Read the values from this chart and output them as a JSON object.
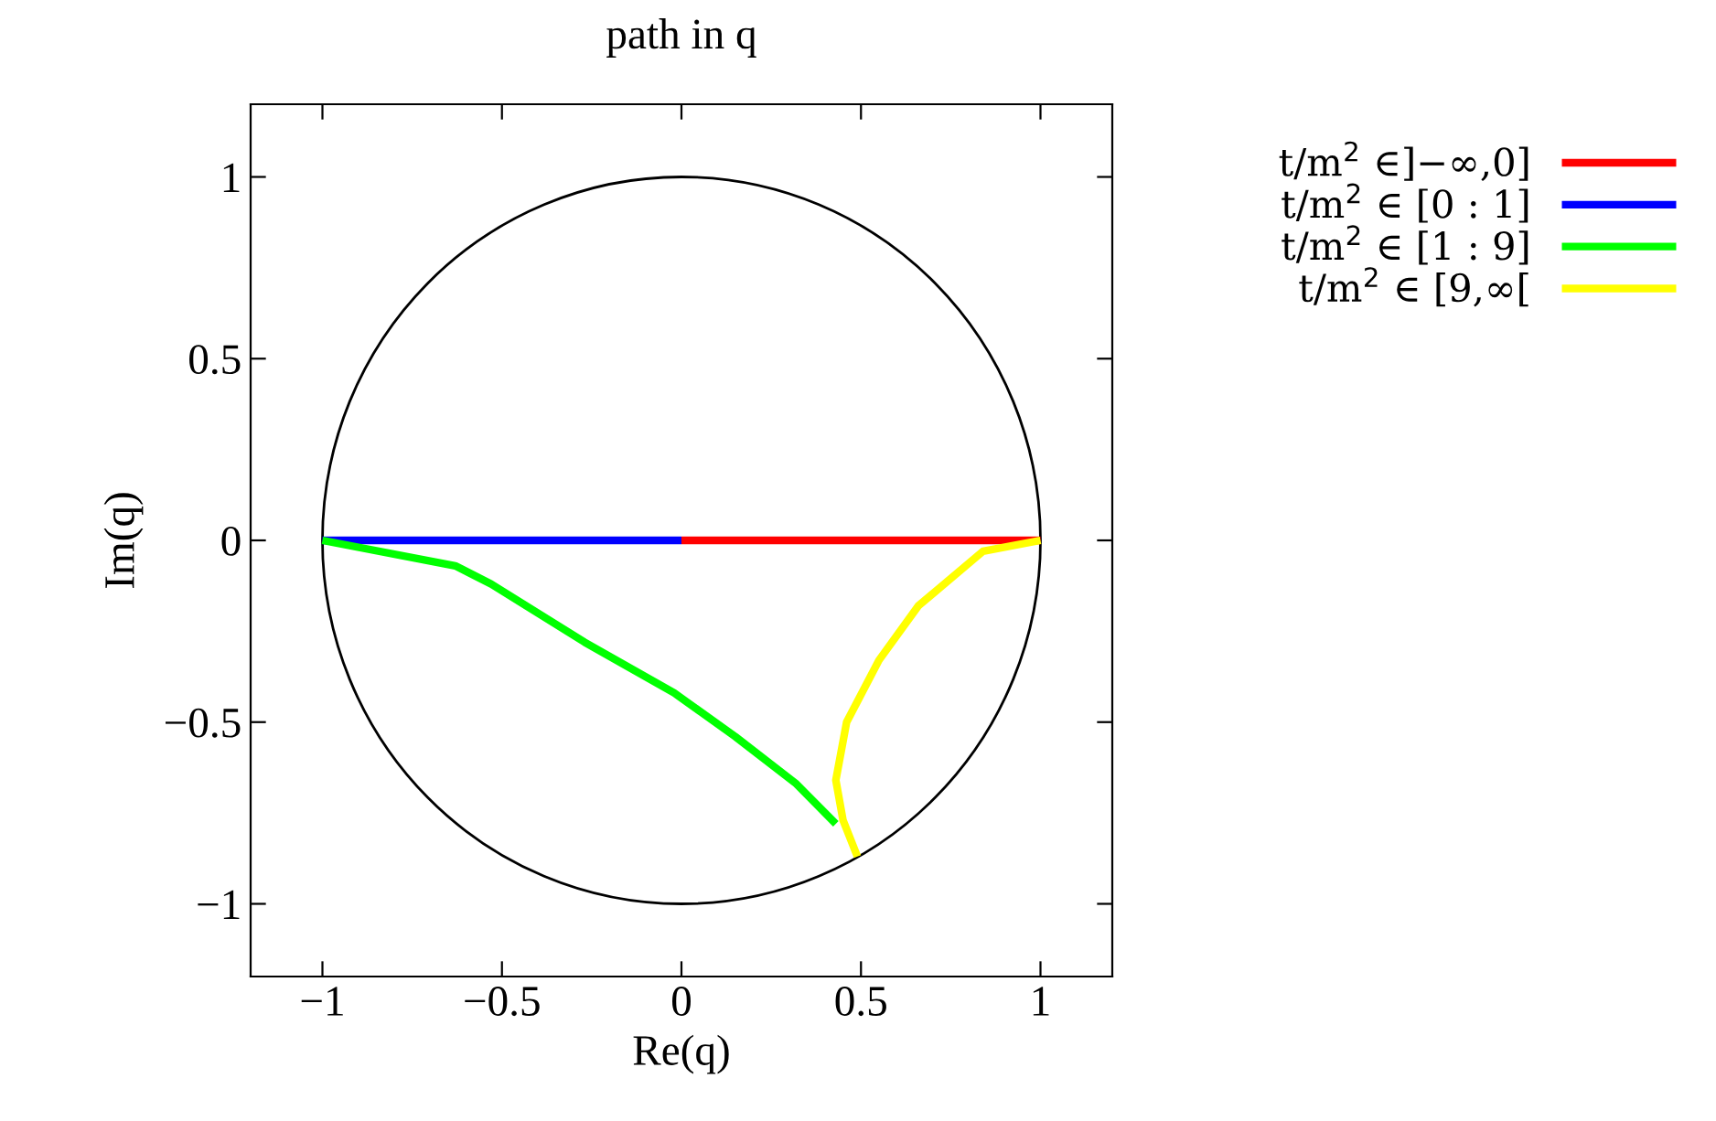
{
  "chart_data": {
    "type": "line",
    "title": "path in q",
    "xlabel": "Re(q)",
    "ylabel": "Im(q)",
    "xlim": [
      -1.2,
      1.2
    ],
    "ylim": [
      -1.2,
      1.2
    ],
    "xticks": [
      {
        "value": -1,
        "label": "−1"
      },
      {
        "value": -0.5,
        "label": "−0.5"
      },
      0,
      0.5,
      1
    ],
    "yticks": [
      {
        "value": -1,
        "label": "−1"
      },
      {
        "value": -0.5,
        "label": "−0.5"
      },
      0,
      0.5,
      1
    ],
    "grid": false,
    "legend": "top right",
    "marker": "none",
    "line_style": "solid",
    "series": [
      {
        "name": "t/m$^{2}$ ∈]−∞,0]",
        "color": "#ff0000",
        "x": [
          0,
          1
        ],
        "values": [
          0,
          0
        ]
      },
      {
        "name": "t/m$^{2}$ ∈ [0 : 1]",
        "color": "#0000ff",
        "x": [
          -1,
          0
        ],
        "values": [
          0,
          0
        ]
      },
      {
        "name": "t/m$^{2}$ ∈ [1 : 9]",
        "color": "#00ff00",
        "x": [
          -1,
          -0.63,
          -0.53,
          -0.27,
          -0.02,
          0.15,
          0.32,
          0.43
        ],
        "values": [
          0,
          -0.07,
          -0.12,
          -0.28,
          -0.42,
          -0.54,
          -0.67,
          -0.78
        ]
      },
      {
        "name": "t/m$^{2}$ ∈ [9,∞[",
        "color": "#ffff00",
        "x": [
          1,
          0.84,
          0.66,
          0.55,
          0.46,
          0.43,
          0.45,
          0.49
        ],
        "values": [
          0,
          -0.03,
          -0.18,
          -0.33,
          -0.5,
          -0.66,
          -0.77,
          -0.87
        ]
      }
    ]
  }
}
